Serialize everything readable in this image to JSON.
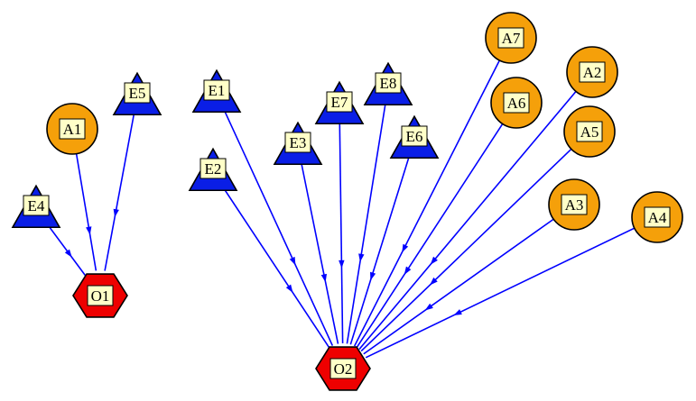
{
  "diagram": {
    "colors": {
      "edge": "#0000ff",
      "circle_fill": "#f5a00a",
      "triangle_fill": "#0a1ee6",
      "hexagon_fill": "#ee0000",
      "label_fill": "#ffffc8"
    },
    "nodes": [
      {
        "id": "A1",
        "shape": "circle"
      },
      {
        "id": "A2",
        "shape": "circle"
      },
      {
        "id": "A3",
        "shape": "circle"
      },
      {
        "id": "A4",
        "shape": "circle"
      },
      {
        "id": "A5",
        "shape": "circle"
      },
      {
        "id": "A6",
        "shape": "circle"
      },
      {
        "id": "A7",
        "shape": "circle"
      },
      {
        "id": "E1",
        "shape": "triangle"
      },
      {
        "id": "E2",
        "shape": "triangle"
      },
      {
        "id": "E3",
        "shape": "triangle"
      },
      {
        "id": "E4",
        "shape": "triangle"
      },
      {
        "id": "E5",
        "shape": "triangle"
      },
      {
        "id": "E6",
        "shape": "triangle"
      },
      {
        "id": "E7",
        "shape": "triangle"
      },
      {
        "id": "E8",
        "shape": "triangle"
      },
      {
        "id": "O1",
        "shape": "hexagon"
      },
      {
        "id": "O2",
        "shape": "hexagon"
      }
    ],
    "edges": [
      {
        "from": "E4",
        "to": "O1"
      },
      {
        "from": "A1",
        "to": "O1"
      },
      {
        "from": "E5",
        "to": "O1"
      },
      {
        "from": "E1",
        "to": "O2"
      },
      {
        "from": "E2",
        "to": "O2"
      },
      {
        "from": "E3",
        "to": "O2"
      },
      {
        "from": "E7",
        "to": "O2"
      },
      {
        "from": "E8",
        "to": "O2"
      },
      {
        "from": "E6",
        "to": "O2"
      },
      {
        "from": "A7",
        "to": "O2"
      },
      {
        "from": "A6",
        "to": "O2"
      },
      {
        "from": "A2",
        "to": "O2"
      },
      {
        "from": "A5",
        "to": "O2"
      },
      {
        "from": "A3",
        "to": "O2"
      },
      {
        "from": "A4",
        "to": "O2"
      }
    ]
  }
}
